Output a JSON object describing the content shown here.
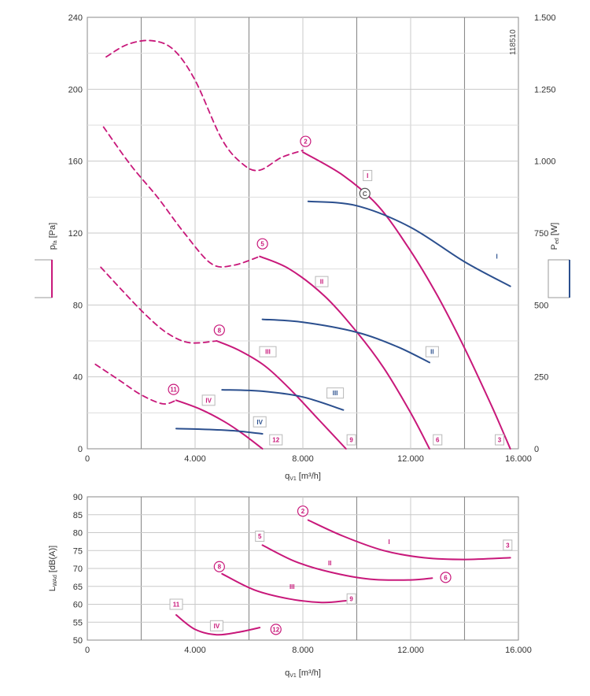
{
  "colors": {
    "pressure": "#c8187a",
    "power": "#2b4f8e",
    "grid": "#c9c9c9",
    "grid_major": "#8a8a8a"
  },
  "chart_data": [
    {
      "type": "line",
      "id": "pressure_power",
      "xlabel": "q",
      "xlabel_sub": "V1",
      "xlabel_unit": " [m³/h]",
      "ylabel": "p",
      "ylabel_sub": "fa",
      "ylabel_unit": " [Pa]",
      "y2label": "P",
      "y2label_sub": "ed",
      "y2label_unit": " [W]",
      "xlim": [
        0,
        16000
      ],
      "ylim": [
        0,
        240
      ],
      "y2lim": [
        0,
        1500
      ],
      "x_ticks": [
        0,
        4000,
        8000,
        12000,
        16000
      ],
      "x_tick_labels": [
        "0",
        "4.000",
        "8.000",
        "12.000",
        "16.000"
      ],
      "y_ticks": [
        0,
        40,
        80,
        120,
        160,
        200,
        240
      ],
      "y_tick_labels": [
        "0",
        "40",
        "80",
        "120",
        "160",
        "200",
        "240"
      ],
      "y2_ticks": [
        0,
        250,
        500,
        750,
        1000,
        1250,
        1500
      ],
      "y2_tick_labels": [
        "0",
        "250",
        "500",
        "750",
        "1.000",
        "1.250",
        "1.500"
      ],
      "grid": true,
      "annotation": "118510",
      "series": [
        {
          "name": "I",
          "kind": "pressure",
          "x": [
            8000,
            9500,
            10800,
            12000,
            13000,
            14000,
            15000,
            15700
          ],
          "y": [
            165,
            152,
            135,
            110,
            85,
            56,
            24,
            0
          ]
        },
        {
          "name": "I",
          "kind": "pressure_unstable",
          "x": [
            700,
            1500,
            2400,
            3200,
            4000,
            5000,
            5800,
            6400,
            7200,
            8000
          ],
          "y": [
            218,
            225,
            227,
            222,
            205,
            172,
            158,
            155,
            162,
            166
          ]
        },
        {
          "name": "II",
          "kind": "pressure",
          "x": [
            6400,
            7500,
            8800,
            10000,
            11000,
            12000,
            12700
          ],
          "y": [
            107,
            100,
            85,
            65,
            45,
            20,
            0
          ]
        },
        {
          "name": "II",
          "kind": "pressure_unstable",
          "x": [
            600,
            1600,
            2600,
            3600,
            4600,
            5400,
            6400
          ],
          "y": [
            179,
            158,
            140,
            120,
            103,
            102,
            107
          ]
        },
        {
          "name": "III",
          "kind": "pressure",
          "x": [
            4800,
            5600,
            6600,
            7600,
            8600,
            9600
          ],
          "y": [
            60,
            55,
            46,
            32,
            16,
            0
          ]
        },
        {
          "name": "III",
          "kind": "pressure_unstable",
          "x": [
            500,
            1300,
            2200,
            3000,
            3800,
            4800
          ],
          "y": [
            101,
            88,
            74,
            64,
            59,
            60
          ]
        },
        {
          "name": "IV",
          "kind": "pressure",
          "x": [
            3300,
            4200,
            5100,
            5800,
            6500
          ],
          "y": [
            27,
            22,
            15,
            8,
            0
          ]
        },
        {
          "name": "IV",
          "kind": "pressure_unstable",
          "x": [
            300,
            1200,
            2000,
            2800,
            3300
          ],
          "y": [
            47,
            38,
            30,
            25,
            27
          ]
        },
        {
          "name": "I",
          "kind": "power",
          "x": [
            8200,
            10000,
            12000,
            14000,
            15700
          ],
          "y": [
            860,
            845,
            770,
            650,
            565
          ]
        },
        {
          "name": "II",
          "kind": "power",
          "x": [
            6500,
            8000,
            10000,
            11500,
            12700
          ],
          "y": [
            450,
            440,
            405,
            355,
            300
          ]
        },
        {
          "name": "III",
          "kind": "power",
          "x": [
            5000,
            6500,
            8000,
            9500
          ],
          "y": [
            205,
            200,
            180,
            135
          ]
        },
        {
          "name": "IV",
          "kind": "power",
          "x": [
            3300,
            4500,
            5500,
            6500
          ],
          "y": [
            70,
            67,
            62,
            52
          ]
        }
      ],
      "markers": [
        {
          "label": "2",
          "shape": "circle",
          "color": "pressure",
          "x": 8100,
          "y": 171
        },
        {
          "label": "5",
          "shape": "circle",
          "color": "pressure",
          "x": 6500,
          "y": 114
        },
        {
          "label": "8",
          "shape": "circle",
          "color": "pressure",
          "x": 4900,
          "y": 66
        },
        {
          "label": "11",
          "shape": "circle",
          "color": "pressure",
          "x": 3200,
          "y": 33
        },
        {
          "label": "C",
          "shape": "circle",
          "color": "#555555",
          "x": 10300,
          "y": 142
        },
        {
          "label": "3",
          "shape": "square",
          "color": "pressure",
          "x": 15300,
          "y": 5
        },
        {
          "label": "6",
          "shape": "square",
          "color": "pressure",
          "x": 13000,
          "y": 5
        },
        {
          "label": "9",
          "shape": "square",
          "color": "pressure",
          "x": 9800,
          "y": 5
        },
        {
          "label": "12",
          "shape": "square",
          "color": "pressure",
          "x": 7000,
          "y": 5
        },
        {
          "label": "I",
          "shape": "square",
          "color": "pressure",
          "x": 10400,
          "y": 152
        },
        {
          "label": "II",
          "shape": "square",
          "color": "pressure",
          "x": 8700,
          "y": 93
        },
        {
          "label": "III",
          "shape": "square",
          "color": "pressure",
          "x": 6700,
          "y": 54
        },
        {
          "label": "IV",
          "shape": "square",
          "color": "pressure",
          "x": 4500,
          "y": 27
        },
        {
          "label": "I",
          "shape": "plain",
          "color": "power",
          "x": 15200,
          "y": 107
        },
        {
          "label": "II",
          "shape": "square",
          "color": "power",
          "x": 12800,
          "y": 54
        },
        {
          "label": "III",
          "shape": "square",
          "color": "power",
          "x": 9200,
          "y": 31
        },
        {
          "label": "IV",
          "shape": "square",
          "color": "power",
          "x": 6400,
          "y": 15
        }
      ]
    },
    {
      "type": "line",
      "id": "sound",
      "xlabel": "q",
      "xlabel_sub": "V1",
      "xlabel_unit": " [m³/h]",
      "ylabel": "L",
      "ylabel_sub": "WAd",
      "ylabel_unit": " [dB(A)]",
      "xlim": [
        0,
        16000
      ],
      "ylim": [
        50,
        90
      ],
      "x_ticks": [
        0,
        4000,
        8000,
        12000,
        16000
      ],
      "x_tick_labels": [
        "0",
        "4.000",
        "8.000",
        "12.000",
        "16.000"
      ],
      "y_ticks": [
        50,
        55,
        60,
        65,
        70,
        75,
        80,
        85,
        90
      ],
      "y_tick_labels": [
        "50",
        "55",
        "60",
        "65",
        "70",
        "75",
        "80",
        "85",
        "90"
      ],
      "grid": true,
      "series": [
        {
          "name": "I",
          "x": [
            8200,
            9500,
            11000,
            12500,
            14000,
            15700
          ],
          "y": [
            83.5,
            79,
            75,
            73,
            72.5,
            73
          ]
        },
        {
          "name": "II",
          "x": [
            6500,
            7700,
            9000,
            10500,
            12000,
            12800
          ],
          "y": [
            76.5,
            72,
            69,
            67,
            66.8,
            67.3
          ]
        },
        {
          "name": "III",
          "x": [
            5000,
            6200,
            7500,
            8700,
            9600
          ],
          "y": [
            68.5,
            64,
            61.5,
            60.5,
            61
          ]
        },
        {
          "name": "IV",
          "x": [
            3300,
            4000,
            4800,
            5600,
            6400
          ],
          "y": [
            57,
            53,
            51.5,
            52.2,
            53.5
          ]
        }
      ],
      "markers": [
        {
          "label": "2",
          "shape": "circle",
          "x": 8000,
          "y": 86
        },
        {
          "label": "5",
          "shape": "square",
          "x": 6400,
          "y": 79
        },
        {
          "label": "8",
          "shape": "circle",
          "x": 4900,
          "y": 70.5
        },
        {
          "label": "11",
          "shape": "square",
          "x": 3300,
          "y": 60
        },
        {
          "label": "3",
          "shape": "square",
          "x": 15600,
          "y": 76.5
        },
        {
          "label": "6",
          "shape": "circle",
          "x": 13300,
          "y": 67.5
        },
        {
          "label": "9",
          "shape": "square",
          "x": 9800,
          "y": 61.5
        },
        {
          "label": "12",
          "shape": "circle",
          "x": 7000,
          "y": 53
        },
        {
          "label": "I",
          "shape": "plain",
          "x": 11200,
          "y": 77.5
        },
        {
          "label": "II",
          "shape": "plain",
          "x": 9000,
          "y": 71.5
        },
        {
          "label": "III",
          "shape": "plain",
          "x": 7600,
          "y": 65
        },
        {
          "label": "IV",
          "shape": "square",
          "x": 4800,
          "y": 54
        }
      ]
    }
  ]
}
